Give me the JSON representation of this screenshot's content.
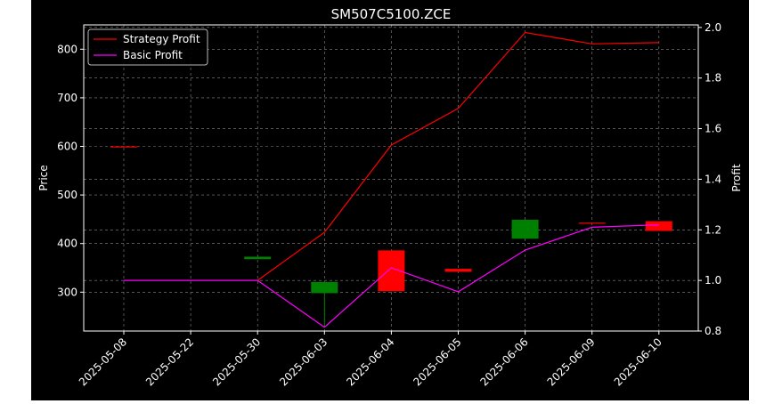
{
  "chart_data": {
    "type": "candlestick+line",
    "title": "SM507C5100.ZCE",
    "xlabel": "",
    "ylabel_left": "Price",
    "ylabel_right": "Profit",
    "categories": [
      "2025-05-08",
      "2025-05-22",
      "2025-05-30",
      "2025-06-03",
      "2025-06-04",
      "2025-06-05",
      "2025-06-06",
      "2025-06-09",
      "2025-06-10"
    ],
    "price_ylim": [
      220,
      850
    ],
    "price_ticks": [
      300,
      400,
      500,
      600,
      700,
      800
    ],
    "profit_ylim": [
      0.8,
      2.01
    ],
    "profit_ticks": [
      0.8,
      1.0,
      1.2,
      1.4,
      1.6,
      1.8,
      2.0
    ],
    "candles": [
      {
        "date": "2025-05-08",
        "open": 600,
        "close": 600,
        "high": 600,
        "low": 600,
        "color": "#ff0000"
      },
      {
        "date": "2025-05-22",
        "open": null,
        "close": null,
        "high": null,
        "low": null,
        "color": "#ff0000"
      },
      {
        "date": "2025-05-30",
        "open": 373,
        "close": 368,
        "high": 373,
        "low": 368,
        "color": "#008000"
      },
      {
        "date": "2025-06-03",
        "open": 321,
        "close": 298,
        "high": 321,
        "low": 228,
        "color": "#008000"
      },
      {
        "date": "2025-06-04",
        "open": 302,
        "close": 386,
        "high": 386,
        "low": 302,
        "color": "#ff0000"
      },
      {
        "date": "2025-06-05",
        "open": 342,
        "close": 348,
        "high": 348,
        "low": 342,
        "color": "#ff0000"
      },
      {
        "date": "2025-06-06",
        "open": 449,
        "close": 410,
        "high": 449,
        "low": 410,
        "color": "#008000"
      },
      {
        "date": "2025-06-09",
        "open": 443,
        "close": 443,
        "high": 443,
        "low": 443,
        "color": "#ff0000"
      },
      {
        "date": "2025-06-10",
        "open": 426,
        "close": 446,
        "high": 446,
        "low": 426,
        "color": "#ff0000"
      }
    ],
    "series": [
      {
        "name": "Strategy Profit",
        "color": "#ff0000",
        "axis": "right",
        "values": [
          null,
          null,
          1.0,
          1.19,
          1.535,
          1.68,
          1.98,
          1.935,
          1.94
        ]
      },
      {
        "name": "Basic Profit",
        "color": "#ff00ff",
        "axis": "right",
        "values": [
          1.0,
          1.0,
          1.0,
          0.815,
          1.05,
          0.955,
          1.12,
          1.21,
          1.22
        ]
      }
    ],
    "grid": true,
    "legend_position": "top-left",
    "colors": {
      "background": "#000000",
      "foreground": "#ffffff",
      "grid": "#888888"
    }
  }
}
